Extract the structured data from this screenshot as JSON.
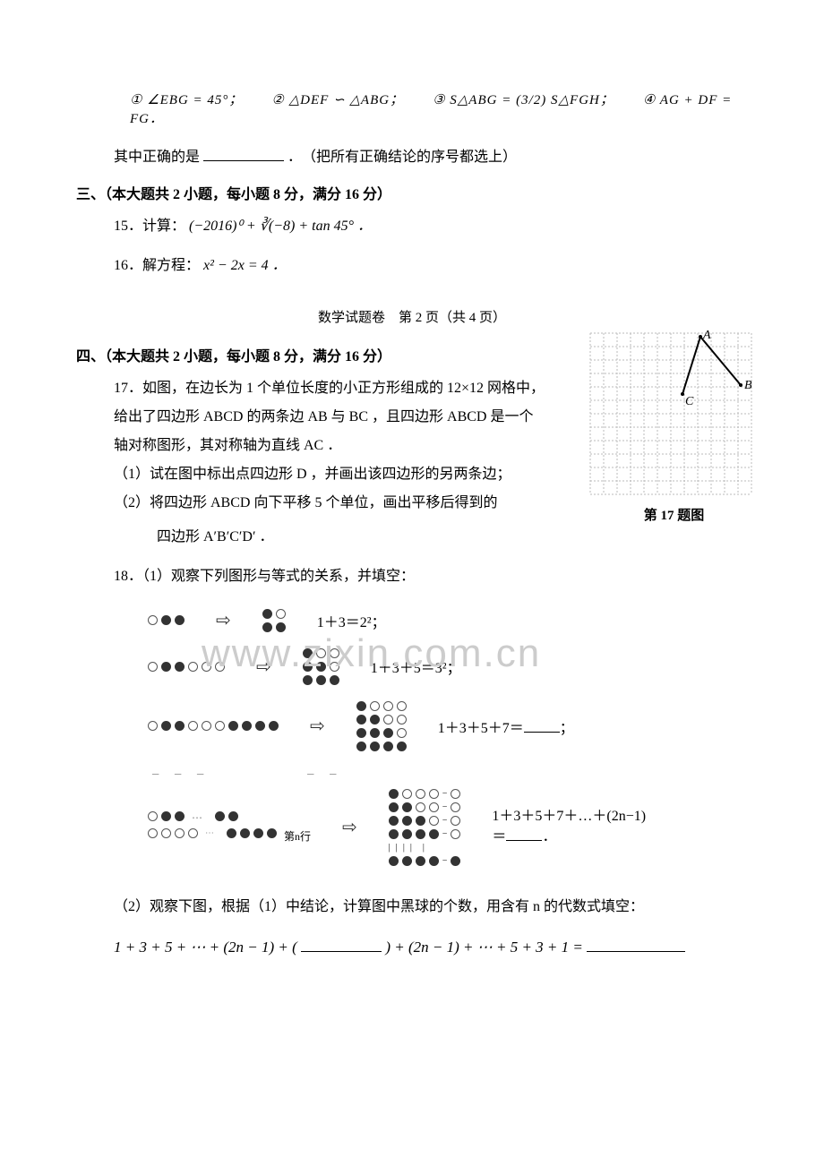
{
  "q14": {
    "opts_line": "① ∠EBG = 45°；　　② △DEF ∽ △ABG；　　③ S△ABG = (3/2) S△FGH；　　④ AG + DF = FG．",
    "prompt_pre": "其中正确的是 ",
    "prompt_post": "．　（把所有正确结论的序号都选上）"
  },
  "section3": "三、（本大题共 2 小题，每小题 8 分，满分 16 分）",
  "q15": {
    "label": "15．计算：",
    "expr": "(−2016)⁰ + ∛(−8) + tan 45° ．"
  },
  "q16": {
    "label": "16．解方程：",
    "expr": "x² − 2x = 4 ．"
  },
  "footer": "数学试题卷　第 2 页（共 4 页）",
  "section4": "四、（本大题共 2 小题，每小题 8 分，满分 16 分）",
  "q17": {
    "line1": "17．如图，在边长为 1 个单位长度的小正方形组成的 12×12 网格中，",
    "line2": "给出了四边形 ABCD 的两条边 AB 与 BC ，且四边形 ABCD 是一个",
    "line3": "轴对称图形，其对称轴为直线 AC ．",
    "sub1": "（1）试在图中标出点四边形 D ，并画出该四边形的另两条边；",
    "sub2": "（2）将四边形 ABCD 向下平移 5 个单位，画出平移后得到的",
    "sub2b": "　　　四边形 A′B′C′D′ ．",
    "caption": "第 17 题图"
  },
  "q18": {
    "line1": "18．（1）观察下列图形与等式的关系，并填空：",
    "eq1": "1＋3＝2²；",
    "eq2": "1＋3＋5＝3²；",
    "eq3_pre": "1＋3＋5＋7＝",
    "eq3_post": "；",
    "eq4_pre": "1＋3＋5＋7＋…＋(2n−1)",
    "eq4_mid": "＝",
    "eq4_post": "．",
    "nth": "第n行",
    "part2": "（2）观察下图，根据（1）中结论，计算图中黑球的个数，用含有 n 的代数式填空：",
    "final_pre": "1 + 3 + 5 + ⋯ + (2n − 1) + (",
    "final_mid": ") + (2n − 1) + ⋯ + 5 + 3 + 1 = ",
    "watermark": "www.zixin.com.cn"
  },
  "colors": {
    "text": "#000000",
    "bg": "#ffffff",
    "watermark": "#cccccc",
    "grid": "#bbbbbb"
  }
}
